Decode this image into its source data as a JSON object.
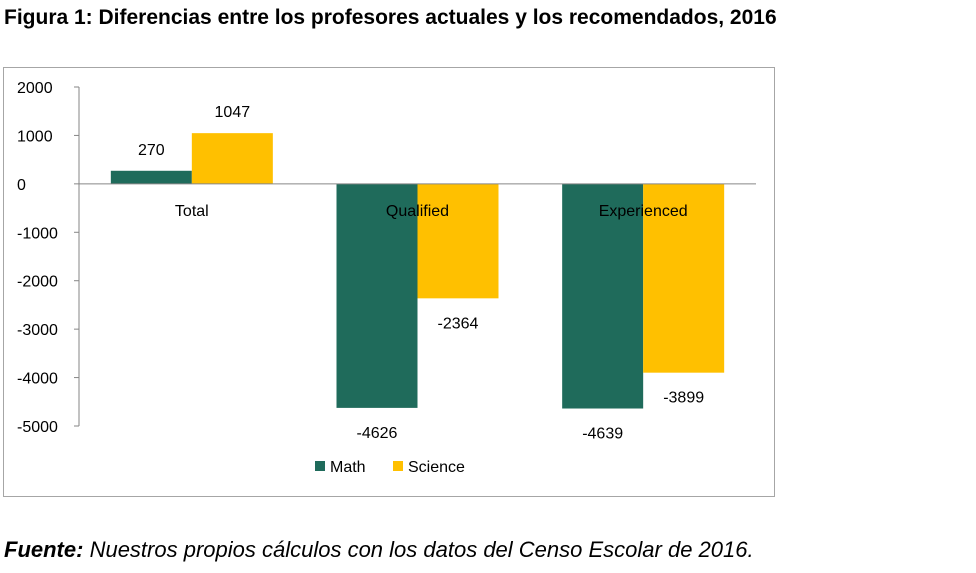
{
  "figure": {
    "title": "Figura 1: Diferencias entre los profesores actuales y los recomendados, 2016"
  },
  "source": {
    "label": "Fuente:",
    "text": " Nuestros propios cálculos con los datos del Censo Escolar de 2016."
  },
  "chart_data": {
    "type": "bar",
    "categories": [
      "Total",
      "Qualified",
      "Experienced"
    ],
    "series": [
      {
        "name": "Math",
        "values": [
          270,
          -4626,
          -4639
        ],
        "color": "#1f6b5b"
      },
      {
        "name": "Science",
        "values": [
          1047,
          -2364,
          -3899
        ],
        "color": "#ffc000"
      }
    ],
    "ylim": [
      -5000,
      2000
    ],
    "yticks": [
      2000,
      1000,
      0,
      -1000,
      -2000,
      -3000,
      -4000,
      -5000
    ],
    "data_labels": true,
    "grid": false,
    "legend_position": "bottom",
    "title": "",
    "xlabel": "",
    "ylabel": ""
  }
}
